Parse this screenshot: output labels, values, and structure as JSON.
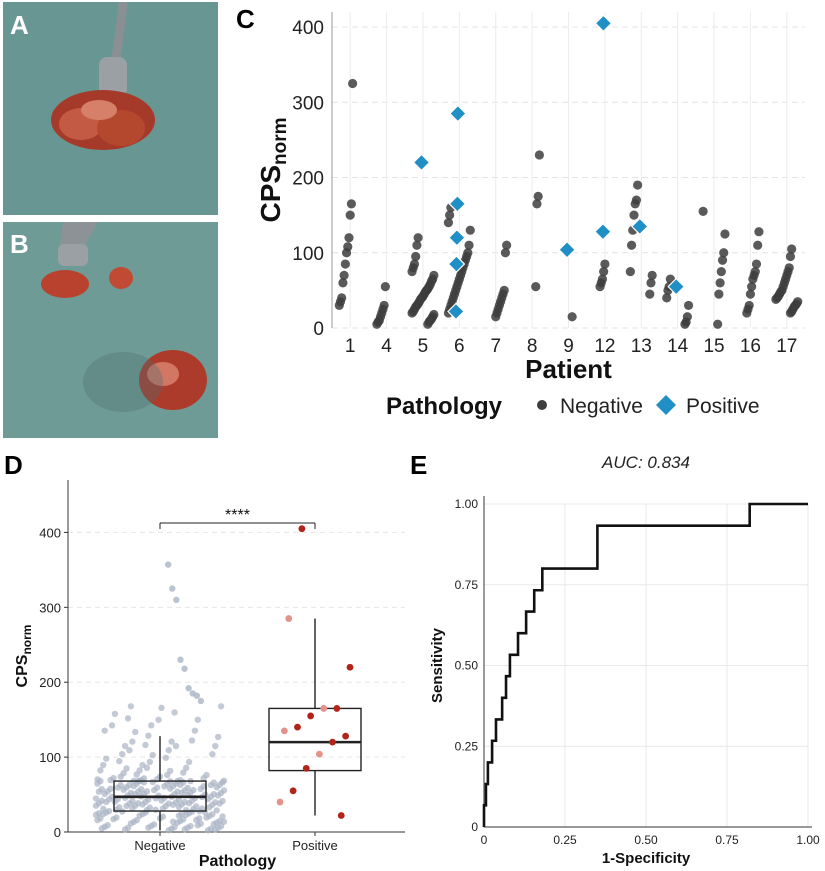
{
  "panels": {
    "a": {
      "letter": "A"
    },
    "b": {
      "letter": "B"
    },
    "c": {
      "letter": "C"
    },
    "d": {
      "letter": "D"
    },
    "e": {
      "letter": "E"
    }
  },
  "colors": {
    "negative": "#3d3d3d",
    "positive": "#1f8fc6",
    "neg_jitter": "#a9b4c4",
    "pos_jitter": "#b22418",
    "pos_jitter_light": "#e3938a",
    "drape": "#6b9a94",
    "tissue": "#b8402e"
  },
  "chart_data": [
    {
      "panel": "C",
      "type": "scatter",
      "xlabel": "Patient",
      "ylabel_main": "CPS",
      "ylabel_sub": "norm",
      "categories": [
        "1",
        "4",
        "5",
        "6",
        "7",
        "8",
        "9",
        "12",
        "13",
        "14",
        "15",
        "16",
        "17"
      ],
      "ylim": [
        0,
        420
      ],
      "yticks": [
        "0",
        "100",
        "200",
        "300",
        "400"
      ],
      "ytick_values": [
        0,
        100,
        200,
        300,
        400
      ],
      "legend": {
        "title": "Pathology",
        "items": [
          "Negative",
          "Positive"
        ],
        "position": "bottom"
      },
      "negative_points": {
        "1": [
          325,
          165,
          150,
          120,
          108,
          100,
          85,
          70,
          60,
          40,
          35,
          30
        ],
        "4": [
          55,
          30,
          25,
          20,
          15,
          10,
          8,
          5
        ],
        "5": [
          120,
          110,
          95,
          85,
          80,
          75,
          70,
          65,
          62,
          58,
          55,
          52,
          50,
          48,
          45,
          42,
          40,
          38,
          35,
          32,
          30,
          28,
          25,
          22,
          20,
          18,
          15,
          12,
          10,
          8,
          5
        ],
        "6": [
          160,
          150,
          140,
          130,
          110,
          100,
          95,
          90,
          85,
          80,
          75,
          70,
          65,
          60,
          55,
          50,
          45,
          40,
          35,
          30,
          25,
          20
        ],
        "7": [
          110,
          100,
          50,
          45,
          40,
          35,
          30,
          25,
          20,
          15
        ],
        "8": [
          230,
          175,
          165,
          55
        ],
        "9": [
          15
        ],
        "12": [
          85,
          75,
          65,
          60,
          55
        ],
        "13": [
          190,
          170,
          165,
          150,
          130,
          110,
          75,
          70,
          60,
          45
        ],
        "14": [
          65,
          55,
          50,
          40,
          30,
          15,
          8,
          5
        ],
        "15": [
          155,
          125,
          100,
          90,
          75,
          60,
          45,
          5
        ],
        "16": [
          128,
          110,
          85,
          75,
          70,
          65,
          55,
          45,
          30,
          25,
          20
        ],
        "17": [
          105,
          95,
          80,
          75,
          70,
          65,
          60,
          55,
          50,
          48,
          45,
          42,
          40,
          38,
          35,
          32,
          30,
          28,
          25,
          22,
          20
        ]
      },
      "positive_points": {
        "5": [
          220
        ],
        "6": [
          285,
          165,
          120,
          85,
          22
        ],
        "9": [
          104
        ],
        "12": [
          405,
          128
        ],
        "13": [
          135
        ],
        "14": [
          55
        ]
      }
    },
    {
      "panel": "D",
      "type": "box",
      "categories": [
        "Negative",
        "Positive"
      ],
      "xlabel": "Pathology",
      "ylabel_main": "CPS",
      "ylabel_sub": "norm",
      "ylim": [
        0,
        470
      ],
      "yticks": [
        "0",
        "100",
        "200",
        "300",
        "400"
      ],
      "ytick_values": [
        0,
        100,
        200,
        300,
        400
      ],
      "boxes": [
        {
          "q1": 28,
          "median": 47,
          "q3": 68,
          "whisker_low": 2,
          "whisker_high": 128
        },
        {
          "q1": 82,
          "median": 120,
          "q3": 165,
          "whisker_low": 22,
          "whisker_high": 285
        }
      ],
      "significance": "****",
      "outliers_negative": [
        357,
        325,
        310,
        230,
        218,
        192,
        185,
        182,
        175
      ],
      "positive_points": [
        405,
        285,
        220,
        165,
        165,
        155,
        140,
        135,
        128,
        120,
        104,
        85,
        55,
        40,
        22
      ]
    },
    {
      "panel": "E",
      "type": "line",
      "title": "AUC: 0.834",
      "xlabel": "1-Specificity",
      "ylabel": "Sensitivity",
      "xlim": [
        0,
        1
      ],
      "ylim": [
        0,
        1
      ],
      "xticks": [
        "0",
        "0.25",
        "0.50",
        "0.75",
        "1.00"
      ],
      "yticks": [
        "0",
        "0.25",
        "0.50",
        "0.75",
        "1.00"
      ],
      "tick_values": [
        0,
        0.25,
        0.5,
        0.75,
        1
      ],
      "roc": [
        [
          0,
          0
        ],
        [
          0,
          0.067
        ],
        [
          0.006,
          0.067
        ],
        [
          0.006,
          0.133
        ],
        [
          0.012,
          0.133
        ],
        [
          0.012,
          0.2
        ],
        [
          0.025,
          0.2
        ],
        [
          0.025,
          0.267
        ],
        [
          0.037,
          0.267
        ],
        [
          0.037,
          0.333
        ],
        [
          0.056,
          0.333
        ],
        [
          0.056,
          0.4
        ],
        [
          0.068,
          0.4
        ],
        [
          0.068,
          0.467
        ],
        [
          0.08,
          0.467
        ],
        [
          0.08,
          0.533
        ],
        [
          0.105,
          0.533
        ],
        [
          0.105,
          0.6
        ],
        [
          0.13,
          0.6
        ],
        [
          0.13,
          0.667
        ],
        [
          0.155,
          0.667
        ],
        [
          0.155,
          0.733
        ],
        [
          0.18,
          0.733
        ],
        [
          0.18,
          0.8
        ],
        [
          0.35,
          0.8
        ],
        [
          0.35,
          0.933
        ],
        [
          0.82,
          0.933
        ],
        [
          0.82,
          1.0
        ],
        [
          1.0,
          1.0
        ]
      ]
    }
  ]
}
